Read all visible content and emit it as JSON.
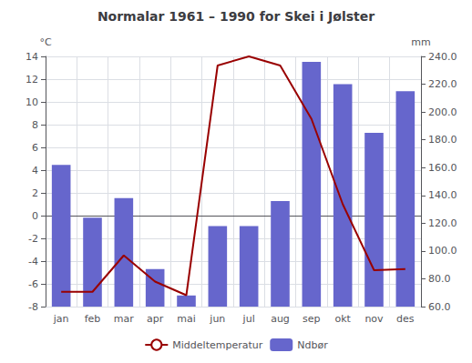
{
  "chart_data": {
    "type": "bar",
    "title": "Normalar 1961 – 1990 for Skei i Jølster",
    "categories": [
      "jan",
      "feb",
      "mar",
      "apr",
      "mai",
      "jun",
      "jul",
      "aug",
      "sep",
      "okt",
      "nov",
      "des"
    ],
    "series": [
      {
        "name": "Middeltemperatur",
        "type": "line",
        "color": "#990000",
        "values": [
          -6.7,
          -6.7,
          -3.5,
          -5.8,
          -7.0,
          13.2,
          14.0,
          13.2,
          8.5,
          1.0,
          -4.8,
          -4.7
        ]
      },
      {
        "name": "Ndbør",
        "type": "bar",
        "color": "#6666CC",
        "axis": "y2",
        "values": [
          162,
          124,
          138,
          87,
          68,
          118,
          118,
          136,
          236,
          220,
          185,
          215
        ]
      }
    ],
    "ylabel": "°C",
    "y2label": "mm",
    "ylim": [
      -8.0,
      14.0
    ],
    "yticks": [
      -8,
      -6,
      -4,
      -2,
      0,
      2,
      4,
      6,
      8,
      10,
      12,
      14
    ],
    "y2lim": [
      60.0,
      240.0
    ],
    "y2ticks": [
      {
        "value": 60,
        "label": "60.0"
      },
      {
        "value": 80,
        "label": "80.0"
      },
      {
        "value": 100,
        "label": "100.0"
      },
      {
        "value": 120,
        "label": "120.0"
      },
      {
        "value": 140,
        "label": "140.0"
      },
      {
        "value": 160,
        "label": "160.0"
      },
      {
        "value": 180,
        "label": "180.0"
      },
      {
        "value": 200,
        "label": "200.0"
      },
      {
        "value": 220,
        "label": "220.0"
      },
      {
        "value": 240,
        "label": "240.0"
      }
    ],
    "grid": true,
    "legend": "bottom"
  }
}
